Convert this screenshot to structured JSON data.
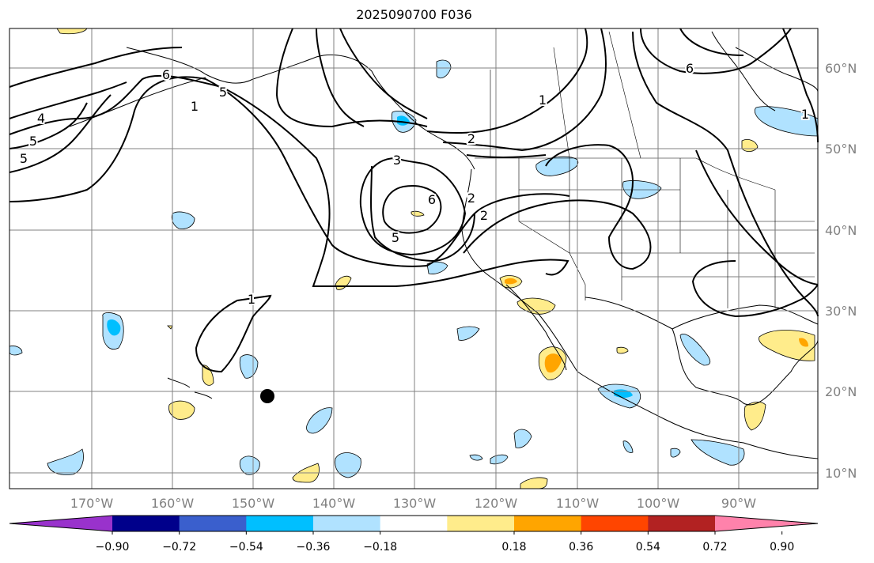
{
  "title": "2025090700 F036",
  "map": {
    "lon_labels": [
      "170°W",
      "160°W",
      "150°W",
      "140°W",
      "130°W",
      "120°W",
      "110°W",
      "100°W",
      "90°W"
    ],
    "lat_labels": [
      "60°N",
      "50°N",
      "40°N",
      "30°N",
      "20°N",
      "10°N"
    ],
    "contour_labels": [
      "5",
      "4",
      "5",
      "6",
      "1",
      "5",
      "1",
      "2",
      "3",
      "6",
      "5",
      "2",
      "1",
      "2",
      "6",
      "1"
    ],
    "grid": true,
    "marker": "black dot"
  },
  "colorbar": {
    "tick_labels": [
      "−0.90",
      "−0.72",
      "−0.54",
      "−0.36",
      "−0.18",
      "0.18",
      "0.36",
      "0.54",
      "0.72",
      "0.90"
    ],
    "colors": [
      "#9932cc",
      "#00008b",
      "#3a5fcd",
      "#00bfff",
      "#b0e2ff",
      "#ffffff",
      "#ffec8b",
      "#ffa500",
      "#ff4500",
      "#b22222",
      "#ff82ab"
    ]
  }
}
